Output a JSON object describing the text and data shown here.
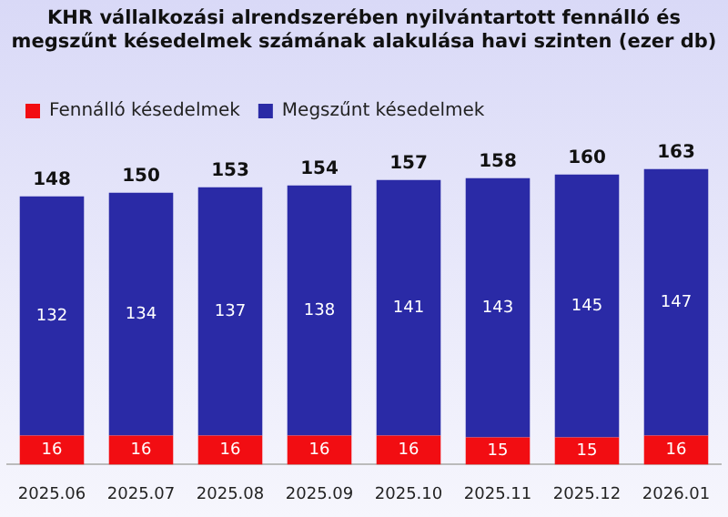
{
  "chart_data": {
    "type": "bar",
    "title": "KHR vállalkozási alrendszerében nyilvántartott fennálló és megszűnt késedelmek számának alakulása havi szinten (ezer db)",
    "categories": [
      "2025.06",
      "2025.07",
      "2025.08",
      "2025.09",
      "2025.10",
      "2025.11",
      "2025.12",
      "2026.01"
    ],
    "stacked": true,
    "series": [
      {
        "name": "Fennálló késedelmek",
        "color": "#f20d12",
        "values": [
          16,
          16,
          16,
          16,
          16,
          15,
          15,
          16
        ]
      },
      {
        "name": "Megszűnt késedelmek",
        "color": "#2a2aa6",
        "values": [
          132,
          134,
          137,
          138,
          141,
          143,
          145,
          147
        ]
      }
    ],
    "data_labels": true,
    "totals": [
      "148",
      "150",
      "153",
      "154",
      "157",
      "158",
      "160",
      "163"
    ],
    "legend": "top left",
    "grid": false,
    "tick_labels": "x"
  }
}
